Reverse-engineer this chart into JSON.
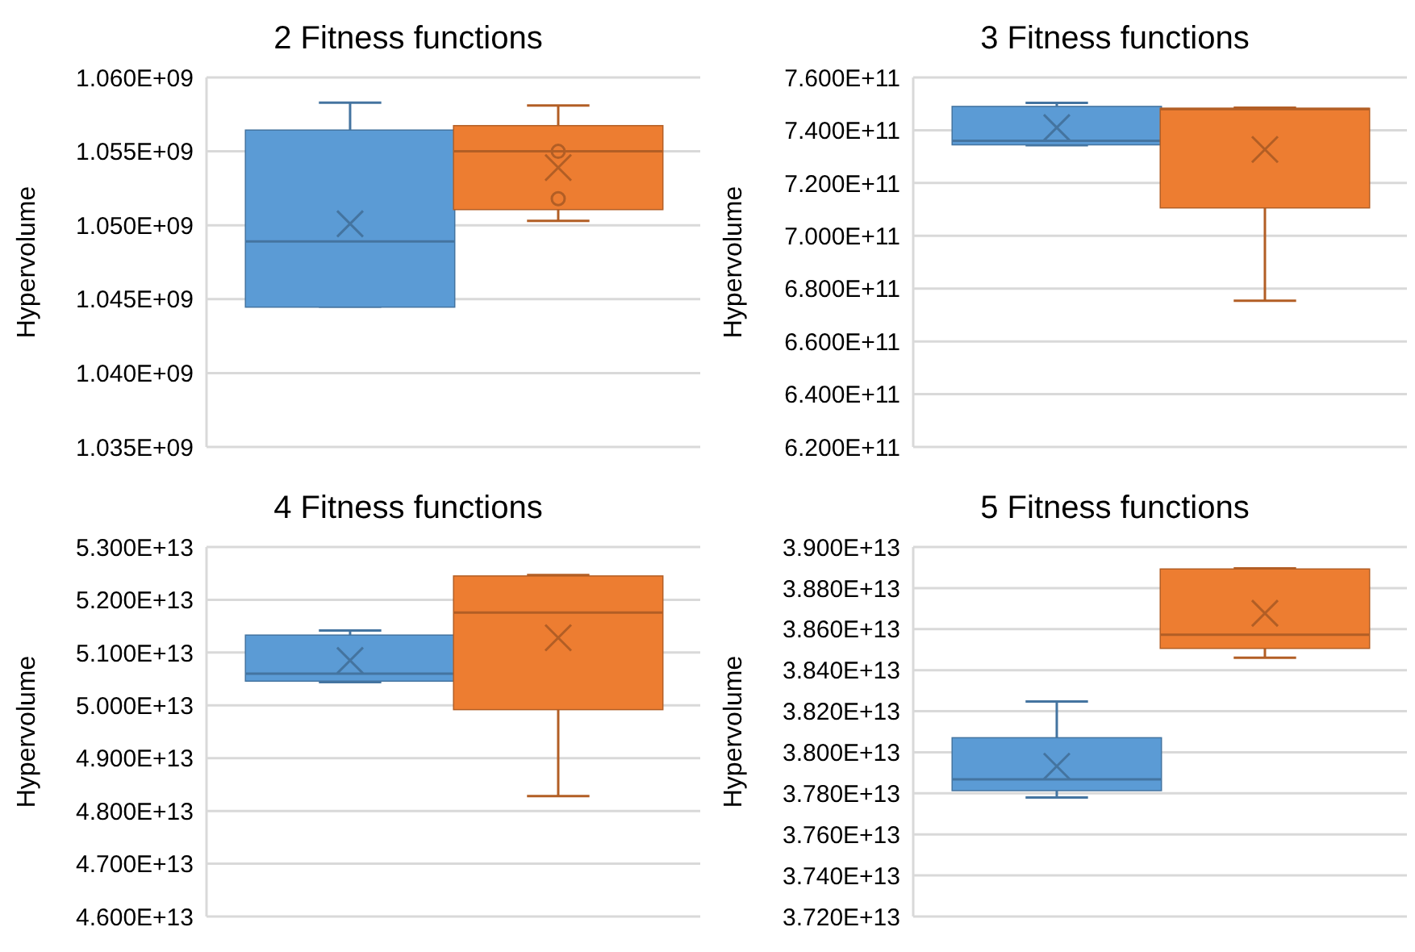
{
  "chart_data": [
    {
      "type": "box",
      "title": "2 Fitness functions",
      "ylabel": "Hypervolume",
      "categories": [
        null
      ],
      "grid": "y",
      "ylim": [
        1035000000,
        1060000000
      ],
      "yticks": [
        {
          "value": 1035000000,
          "label": "1.035E+09"
        },
        {
          "value": 1040000000,
          "label": "1.040E+09"
        },
        {
          "value": 1045000000,
          "label": "1.045E+09"
        },
        {
          "value": 1050000000,
          "label": "1.050E+09"
        },
        {
          "value": 1055000000,
          "label": "1.055E+09"
        },
        {
          "value": 1060000000,
          "label": "1.060E+09"
        }
      ],
      "series": [
        {
          "color": "#5b9bd5",
          "boxes": [
            {
              "low": 1044500000,
              "q1": 1044500000,
              "median": 1048900000,
              "q3": 1056400000,
              "high": 1058300000,
              "mean": 1050100000
            }
          ]
        },
        {
          "color": "#ed7d31",
          "boxes": [
            {
              "low": 1050300000,
              "q1": 1051100000,
              "median": 1055000000,
              "q3": 1056700000,
              "high": 1058100000,
              "mean": 1053900000,
              "outliers": [
                1055000000,
                1051800000
              ]
            }
          ]
        }
      ]
    },
    {
      "type": "box",
      "title": "3 Fitness functions",
      "ylabel": "Hypervolume",
      "categories": [
        null
      ],
      "grid": "y",
      "ylim": [
        620000000000,
        760000000000
      ],
      "yticks": [
        {
          "value": 620000000000,
          "label": "6.200E+11"
        },
        {
          "value": 640000000000,
          "label": "6.400E+11"
        },
        {
          "value": 660000000000,
          "label": "6.600E+11"
        },
        {
          "value": 680000000000,
          "label": "6.800E+11"
        },
        {
          "value": 700000000000,
          "label": "7.000E+11"
        },
        {
          "value": 720000000000,
          "label": "7.200E+11"
        },
        {
          "value": 740000000000,
          "label": "7.400E+11"
        },
        {
          "value": 760000000000,
          "label": "7.600E+11"
        }
      ],
      "series": [
        {
          "color": "#5b9bd5",
          "boxes": [
            {
              "low": 734300000000,
              "q1": 734700000000,
              "median": 736000000000,
              "q3": 748800000000,
              "high": 750400000000,
              "mean": 741000000000
            }
          ]
        },
        {
          "color": "#ed7d31",
          "boxes": [
            {
              "low": 675400000000,
              "q1": 710800000000,
              "median": 748000000000,
              "q3": 748100000000,
              "high": 748500000000,
              "mean": 732700000000
            }
          ]
        }
      ]
    },
    {
      "type": "box",
      "title": "4 Fitness functions",
      "ylabel": "Hypervolume",
      "categories": [
        null
      ],
      "grid": "y",
      "ylim": [
        46000000000000,
        53000000000000
      ],
      "yticks": [
        {
          "value": 46000000000000,
          "label": "4.600E+13"
        },
        {
          "value": 47000000000000,
          "label": "4.700E+13"
        },
        {
          "value": 48000000000000,
          "label": "4.800E+13"
        },
        {
          "value": 49000000000000,
          "label": "4.900E+13"
        },
        {
          "value": 50000000000000,
          "label": "5.000E+13"
        },
        {
          "value": 51000000000000,
          "label": "5.100E+13"
        },
        {
          "value": 52000000000000,
          "label": "5.200E+13"
        },
        {
          "value": 53000000000000,
          "label": "5.300E+13"
        }
      ],
      "series": [
        {
          "color": "#5b9bd5",
          "boxes": [
            {
              "low": 50440000000000,
              "q1": 50470000000000,
              "median": 50600000000000,
              "q3": 51320000000000,
              "high": 51420000000000,
              "mean": 50850000000000
            }
          ]
        },
        {
          "color": "#ed7d31",
          "boxes": [
            {
              "low": 48280000000000,
              "q1": 49930000000000,
              "median": 51760000000000,
              "q3": 52440000000000,
              "high": 52470000000000,
              "mean": 51280000000000
            }
          ]
        }
      ]
    },
    {
      "type": "box",
      "title": "5 Fitness functions",
      "ylabel": "Hypervolume",
      "categories": [
        null
      ],
      "grid": "y",
      "ylim": [
        37200000000000,
        39000000000000
      ],
      "yticks": [
        {
          "value": 37200000000000,
          "label": "3.720E+13"
        },
        {
          "value": 37400000000000,
          "label": "3.740E+13"
        },
        {
          "value": 37600000000000,
          "label": "3.760E+13"
        },
        {
          "value": 37800000000000,
          "label": "3.780E+13"
        },
        {
          "value": 38000000000000,
          "label": "3.800E+13"
        },
        {
          "value": 38200000000000,
          "label": "3.820E+13"
        },
        {
          "value": 38400000000000,
          "label": "3.840E+13"
        },
        {
          "value": 38600000000000,
          "label": "3.860E+13"
        },
        {
          "value": 38800000000000,
          "label": "3.880E+13"
        },
        {
          "value": 39000000000000,
          "label": "3.900E+13"
        }
      ],
      "series": [
        {
          "color": "#5b9bd5",
          "boxes": [
            {
              "low": 37780000000000,
              "q1": 37816000000000,
              "median": 37868000000000,
              "q3": 38068000000000,
              "high": 38247000000000,
              "mean": 37932000000000
            }
          ]
        },
        {
          "color": "#ed7d31",
          "boxes": [
            {
              "low": 38461000000000,
              "q1": 38509000000000,
              "median": 38573000000000,
              "q3": 38890000000000,
              "high": 38896000000000,
              "mean": 38677000000000
            }
          ]
        }
      ]
    }
  ]
}
